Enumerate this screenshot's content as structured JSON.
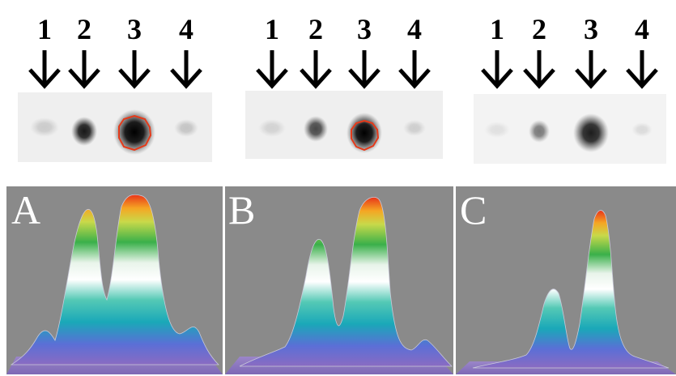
{
  "figure": {
    "groups": [
      {
        "id": "A",
        "lanes": [
          "1",
          "2",
          "3",
          "4"
        ],
        "spots": [
          0.18,
          0.85,
          1.0,
          0.2
        ],
        "peaks": [
          0.18,
          0.78,
          1.0,
          0.2
        ],
        "outlined_lanes": [
          3
        ]
      },
      {
        "id": "B",
        "lanes": [
          "1",
          "2",
          "3",
          "4"
        ],
        "spots": [
          0.12,
          0.6,
          0.95,
          0.14
        ],
        "peaks": [
          0.12,
          0.58,
          1.0,
          0.18
        ],
        "outlined_lanes": [
          3
        ]
      },
      {
        "id": "C",
        "lanes": [
          "1",
          "2",
          "3",
          "4"
        ],
        "spots": [
          0.08,
          0.45,
          0.85,
          0.1
        ],
        "peaks": [
          0.06,
          0.42,
          0.92,
          0.08
        ],
        "outlined_lanes": []
      }
    ],
    "colors": {
      "panel_background": "#8a8a8a",
      "arrow": "#000000",
      "outline": "#e53a1a",
      "strip_background": "#efefef"
    }
  }
}
